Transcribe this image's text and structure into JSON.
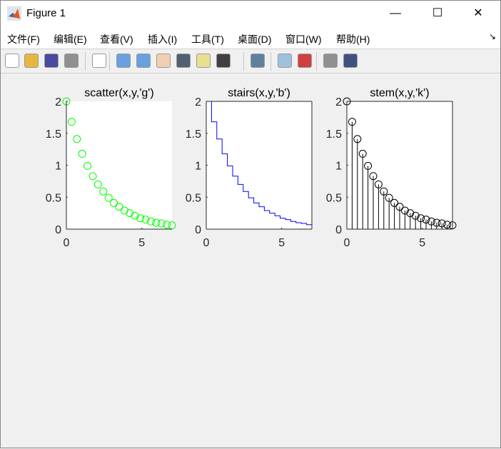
{
  "window": {
    "title": "Figure 1",
    "minimize": "—",
    "maximize": "☐",
    "close": "✕",
    "overflow": "↘"
  },
  "menu": [
    "文件(F)",
    "编辑(E)",
    "查看(V)",
    "插入(I)",
    "工具(T)",
    "桌面(D)",
    "窗口(W)",
    "帮助(H)"
  ],
  "toolbar": [
    {
      "icon": "new-figure-icon",
      "color": "#ffffff"
    },
    {
      "icon": "open-icon",
      "color": "#e8b640"
    },
    {
      "icon": "save-icon",
      "color": "#4a4aa0"
    },
    {
      "icon": "print-icon",
      "color": "#909090"
    },
    {
      "icon": "pointer-icon",
      "color": "#ffffff"
    },
    {
      "icon": "zoom-in-icon",
      "color": "#6aa0e0"
    },
    {
      "icon": "zoom-out-icon",
      "color": "#6aa0e0"
    },
    {
      "icon": "pan-icon",
      "color": "#f0d0b0"
    },
    {
      "icon": "rotate-icon",
      "color": "#506070"
    },
    {
      "icon": "data-cursor-icon",
      "color": "#e8e090"
    },
    {
      "icon": "brush-icon",
      "color": "#404040"
    },
    {
      "icon": "link-icon",
      "color": "#6080a0"
    },
    {
      "icon": "colorbar-icon",
      "color": "#a0c0e0"
    },
    {
      "icon": "legend-icon",
      "color": "#d04040"
    },
    {
      "icon": "hide-tools-icon",
      "color": "#909090"
    },
    {
      "icon": "show-tools-icon",
      "color": "#405080"
    }
  ],
  "chart_data": [
    {
      "type": "scatter",
      "title": "scatter(x,y,'g')",
      "color": "#00ff00",
      "box": false,
      "xlim": [
        0,
        7
      ],
      "ylim": [
        0,
        2
      ],
      "xticks": [
        "0",
        "5"
      ],
      "yticks": [
        "0",
        "0.5",
        "1",
        "1.5",
        "2"
      ],
      "x": [
        0,
        0.35,
        0.7,
        1.05,
        1.4,
        1.75,
        2.1,
        2.45,
        2.8,
        3.15,
        3.5,
        3.85,
        4.2,
        4.55,
        4.9,
        5.25,
        5.6,
        5.95,
        6.3,
        6.65,
        7
      ],
      "y": [
        2.0,
        1.68,
        1.41,
        1.18,
        0.99,
        0.83,
        0.7,
        0.59,
        0.49,
        0.41,
        0.35,
        0.29,
        0.25,
        0.21,
        0.17,
        0.15,
        0.12,
        0.1,
        0.09,
        0.07,
        0.06
      ]
    },
    {
      "type": "stairs",
      "title": "stairs(x,y,'b')",
      "color": "#0000ff",
      "box": true,
      "xlim": [
        0,
        7
      ],
      "ylim": [
        0,
        2
      ],
      "xticks": [
        "0",
        "5"
      ],
      "yticks": [
        "0",
        "0.5",
        "1",
        "1.5",
        "2"
      ],
      "x": [
        0,
        0.35,
        0.7,
        1.05,
        1.4,
        1.75,
        2.1,
        2.45,
        2.8,
        3.15,
        3.5,
        3.85,
        4.2,
        4.55,
        4.9,
        5.25,
        5.6,
        5.95,
        6.3,
        6.65,
        7
      ],
      "y": [
        2.0,
        1.68,
        1.41,
        1.18,
        0.99,
        0.83,
        0.7,
        0.59,
        0.49,
        0.41,
        0.35,
        0.29,
        0.25,
        0.21,
        0.17,
        0.15,
        0.12,
        0.1,
        0.09,
        0.07,
        0.06
      ]
    },
    {
      "type": "stem",
      "title": "stem(x,y,'k')",
      "color": "#000000",
      "box": true,
      "xlim": [
        0,
        7
      ],
      "ylim": [
        0,
        2
      ],
      "xticks": [
        "0",
        "5"
      ],
      "yticks": [
        "0",
        "0.5",
        "1",
        "1.5",
        "2"
      ],
      "x": [
        0,
        0.35,
        0.7,
        1.05,
        1.4,
        1.75,
        2.1,
        2.45,
        2.8,
        3.15,
        3.5,
        3.85,
        4.2,
        4.55,
        4.9,
        5.25,
        5.6,
        5.95,
        6.3,
        6.65,
        7
      ],
      "y": [
        2.0,
        1.68,
        1.41,
        1.18,
        0.99,
        0.83,
        0.7,
        0.59,
        0.49,
        0.41,
        0.35,
        0.29,
        0.25,
        0.21,
        0.17,
        0.15,
        0.12,
        0.1,
        0.09,
        0.07,
        0.06
      ]
    }
  ]
}
